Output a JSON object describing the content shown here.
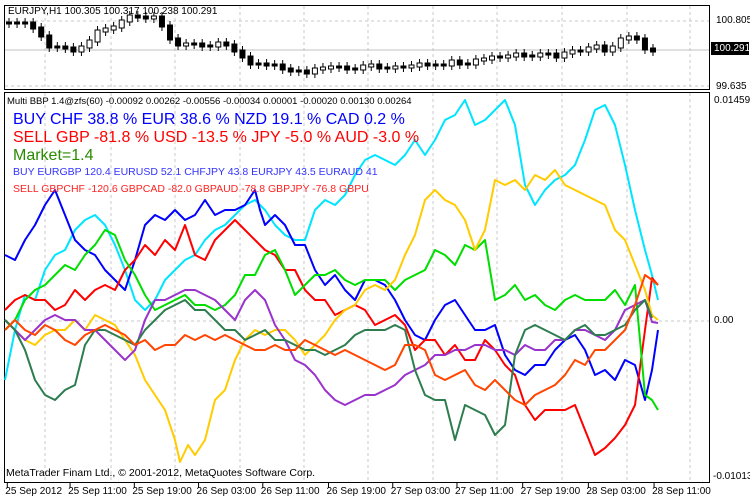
{
  "top_pane": {
    "symbol_label": "EURJPY,H1  100.305 100.317 100.238 100.291",
    "price_ticks": [
      "100.805",
      "99.635"
    ],
    "current_price": "100.291"
  },
  "indicator_pane": {
    "header": "Multi BBP 1.4@zfs(60) -0.00092 0.00262 -0.00556 -0.00034 0.00001 -0.00020 0.00130 0.00264",
    "buy_line": "BUY CHF 38.8 % EUR 38.6 % NZD 19.1 % CAD 0.2 %",
    "sell_line": "SELL GBP -81.8 % USD -13.5 % JPY -5.0 % AUD -3.0 %",
    "market_line": "Market=1.4",
    "buy_pairs": "BUY  EURGBP 120.4 EURUSD 52.1 CHFJPY 43.8 EURJPY 43.5 EURAUD 41",
    "sell_pairs": "SELL  GBPCHF -120.6 GBPCAD -82.0 GBPAUD -78.8 GBPJPY -76.8 GBPU",
    "value_ticks": [
      "0.01459",
      "0.00",
      "-0.01013"
    ],
    "colors": {
      "buy": "#0000ff",
      "sell": "#ff0000",
      "market": "#008000"
    }
  },
  "copyright": "MetaTrader Finam Ltd., © 2001-2012, MetaQuotes Software Corp.",
  "chart_data": {
    "type": "line",
    "title": "EURJPY,H1 with Multi BBP 1.4 indicator",
    "x_ticks": [
      "25 Sep 2012",
      "25 Sep 11:00",
      "25 Sep 19:00",
      "26 Sep 03:00",
      "26 Sep 11:00",
      "26 Sep 19:00",
      "27 Sep 03:00",
      "27 Sep 11:00",
      "27 Sep 19:00",
      "28 Sep 03:00",
      "28 Sep 11:00"
    ],
    "price_range": [
      99.635,
      100.805
    ],
    "indicator_range": [
      -0.01013,
      0.01459
    ],
    "series_colors": [
      "#00e5ff",
      "#0000ff",
      "#ff0000",
      "#00dd00",
      "#ffcc00",
      "#9933cc",
      "#2e7d4f",
      "#ff4500"
    ]
  }
}
